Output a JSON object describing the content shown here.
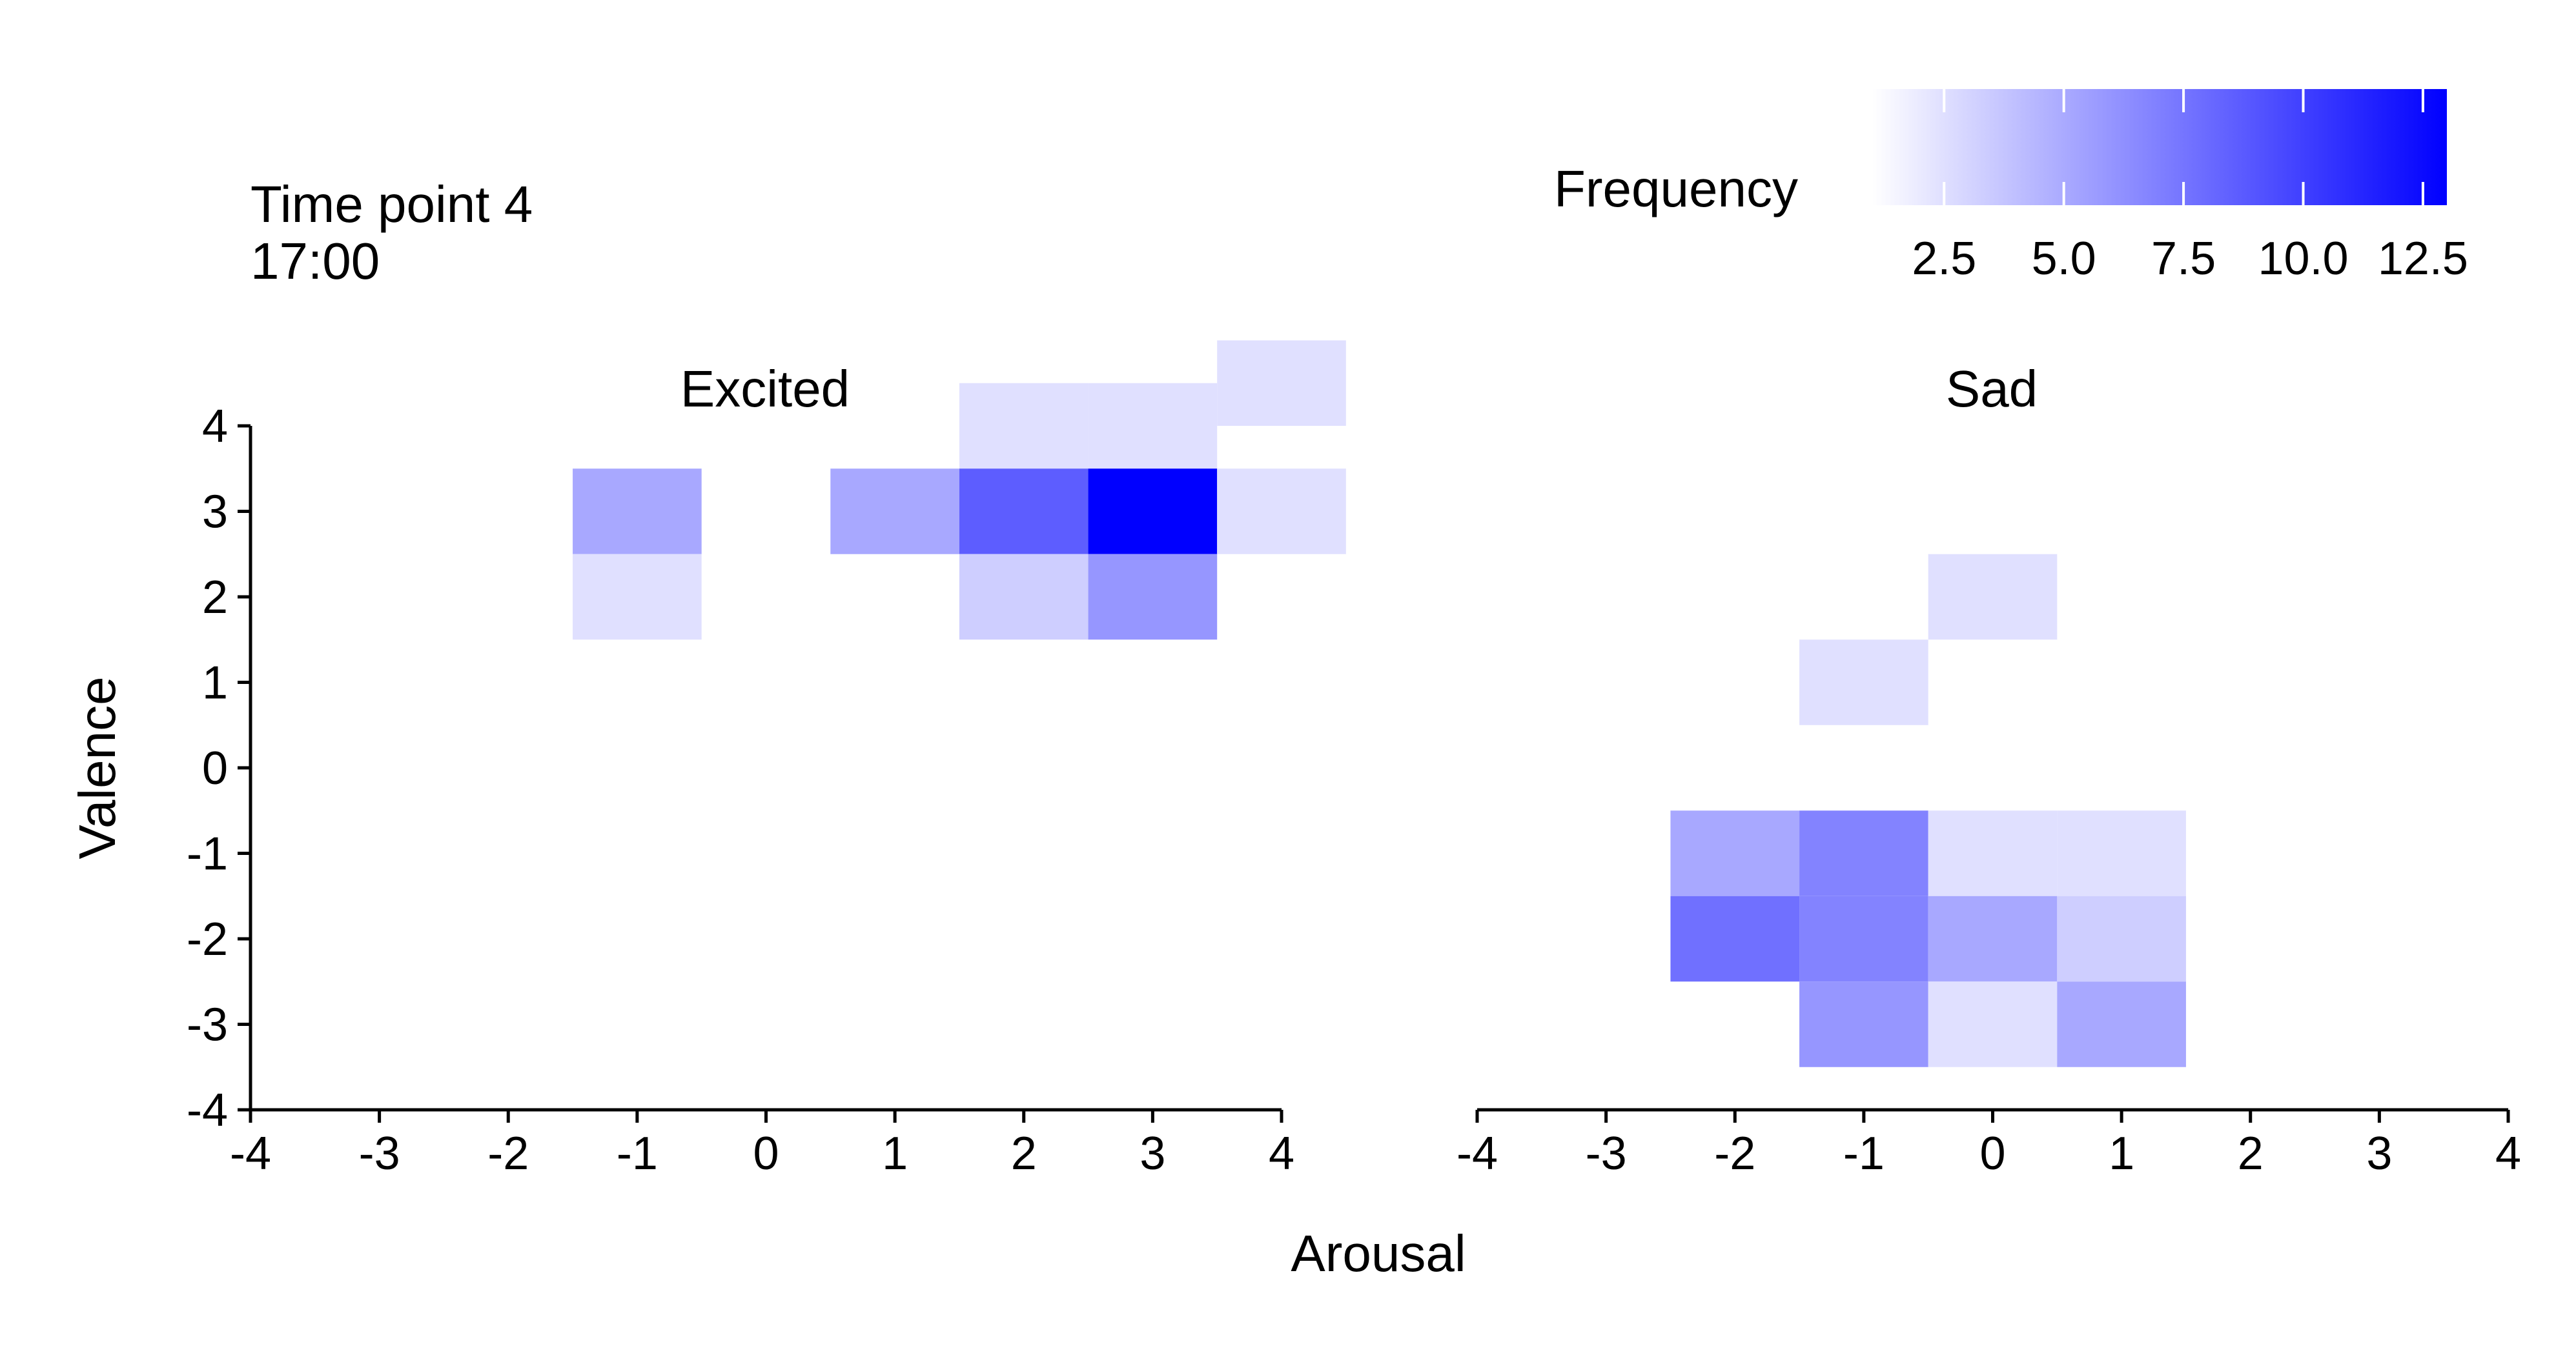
{
  "annotation": {
    "line1": "Time point 4",
    "line2": "17:00"
  },
  "legend": {
    "title": "Frequency",
    "min": 1,
    "max": 13,
    "color_low": "#ffffff",
    "color_high": "#0000ff",
    "ticks": [
      {
        "value": 2.5,
        "label": "2.5"
      },
      {
        "value": 5.0,
        "label": "5.0"
      },
      {
        "value": 7.5,
        "label": "7.5"
      },
      {
        "value": 10.0,
        "label": "10.0"
      },
      {
        "value": 12.5,
        "label": "12.5"
      }
    ]
  },
  "chart_data": {
    "type": "heatmap",
    "xlabel": "Arousal",
    "ylabel": "Valence",
    "xlim": [
      -4,
      4
    ],
    "ylim": [
      -4,
      4
    ],
    "x_ticks": [
      "-4",
      "-3",
      "-2",
      "-1",
      "0",
      "1",
      "2",
      "3",
      "4"
    ],
    "y_ticks": [
      "-4",
      "-3",
      "-2",
      "-1",
      "0",
      "1",
      "2",
      "3",
      "4"
    ],
    "value_label": "Frequency",
    "color_range": [
      1,
      13
    ],
    "facets": [
      {
        "title": "Excited",
        "cells": [
          {
            "x": -1,
            "y": 3,
            "value": 4
          },
          {
            "x": -1,
            "y": 2,
            "value": 1
          },
          {
            "x": 1,
            "y": 3,
            "value": 4
          },
          {
            "x": 2,
            "y": 4,
            "value": 1
          },
          {
            "x": 3,
            "y": 4,
            "value": 1
          },
          {
            "x": 4,
            "y": 4.5,
            "value": 1
          },
          {
            "x": 2,
            "y": 3,
            "value": 8
          },
          {
            "x": 3,
            "y": 3,
            "value": 13
          },
          {
            "x": 4,
            "y": 3,
            "value": 1
          },
          {
            "x": 2,
            "y": 2,
            "value": 2
          },
          {
            "x": 3,
            "y": 2,
            "value": 5
          }
        ]
      },
      {
        "title": "Sad",
        "cells": [
          {
            "x": 0,
            "y": 2,
            "value": 1
          },
          {
            "x": -1,
            "y": 1,
            "value": 1
          },
          {
            "x": -2,
            "y": -1,
            "value": 4
          },
          {
            "x": -1,
            "y": -1,
            "value": 6
          },
          {
            "x": 0,
            "y": -1,
            "value": 1
          },
          {
            "x": 1,
            "y": -1,
            "value": 1
          },
          {
            "x": -2,
            "y": -2,
            "value": 7
          },
          {
            "x": -1,
            "y": -2,
            "value": 6
          },
          {
            "x": 0,
            "y": -2,
            "value": 4
          },
          {
            "x": 1,
            "y": -2,
            "value": 2
          },
          {
            "x": -1,
            "y": -3,
            "value": 5
          },
          {
            "x": 0,
            "y": -3,
            "value": 1
          },
          {
            "x": 1,
            "y": -3,
            "value": 4
          }
        ]
      }
    ]
  }
}
